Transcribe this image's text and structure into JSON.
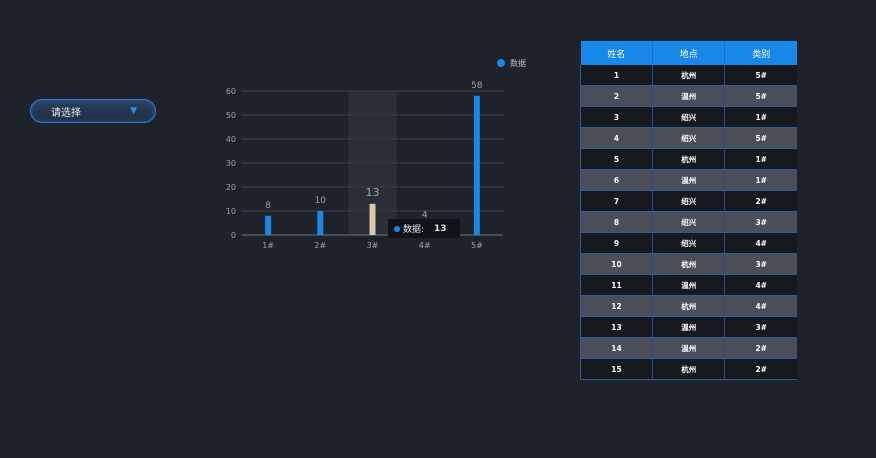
{
  "select": {
    "placeholder": "请选择",
    "icon": "caret-down-icon"
  },
  "chart_data": {
    "type": "bar",
    "categories": [
      "1#",
      "2#",
      "3#",
      "4#",
      "5#"
    ],
    "series": [
      {
        "name": "数据",
        "values": [
          8,
          10,
          13,
          4,
          58
        ]
      }
    ],
    "ylim": [
      0,
      60
    ],
    "yticks": [
      0,
      10,
      20,
      30,
      40,
      50,
      60
    ],
    "grid": true,
    "legend": "top-right",
    "highlight_index": 2,
    "colors": {
      "bar": "#1787e8",
      "highlight": "#d9c9a8"
    }
  },
  "tooltip": {
    "series_label": "数据:",
    "value": "13"
  },
  "table": {
    "headers": [
      "姓名",
      "地点",
      "类别"
    ],
    "rows": [
      [
        "1",
        "杭州",
        "5#"
      ],
      [
        "2",
        "温州",
        "5#"
      ],
      [
        "3",
        "绍兴",
        "1#"
      ],
      [
        "4",
        "绍兴",
        "5#"
      ],
      [
        "5",
        "杭州",
        "1#"
      ],
      [
        "6",
        "温州",
        "1#"
      ],
      [
        "7",
        "绍兴",
        "2#"
      ],
      [
        "8",
        "绍兴",
        "3#"
      ],
      [
        "9",
        "绍兴",
        "4#"
      ],
      [
        "10",
        "杭州",
        "3#"
      ],
      [
        "11",
        "温州",
        "4#"
      ],
      [
        "12",
        "杭州",
        "4#"
      ],
      [
        "13",
        "温州",
        "3#"
      ],
      [
        "14",
        "温州",
        "2#"
      ],
      [
        "15",
        "杭州",
        "2#"
      ]
    ]
  }
}
